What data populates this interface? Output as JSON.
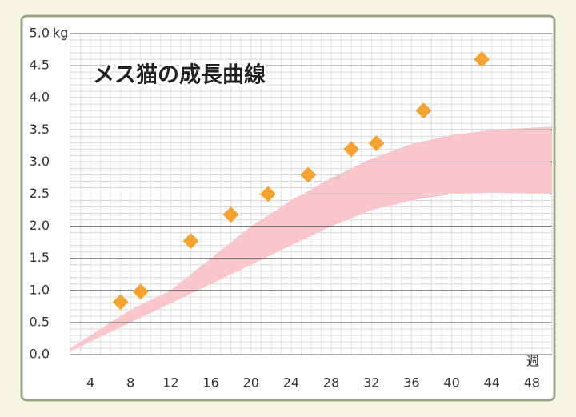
{
  "chart_data": {
    "type": "scatter",
    "title": "メス猫の成長曲線",
    "y_unit": "kg",
    "x_unit": "週",
    "xlim": [
      2,
      50
    ],
    "ylim": [
      0,
      5
    ],
    "xticks": [
      4,
      8,
      12,
      16,
      20,
      24,
      28,
      32,
      36,
      40,
      44,
      48
    ],
    "yticks": [
      {
        "value": 0,
        "label": "0.0"
      },
      {
        "value": 0.5,
        "label": "0.5"
      },
      {
        "value": 1,
        "label": "1.0"
      },
      {
        "value": 1.5,
        "label": "1.5"
      },
      {
        "value": 2,
        "label": "2.0"
      },
      {
        "value": 2.5,
        "label": "2.5"
      },
      {
        "value": 3,
        "label": "3.0"
      },
      {
        "value": 3.5,
        "label": "3.5"
      },
      {
        "value": 4,
        "label": "4.0"
      },
      {
        "value": 4.5,
        "label": "4.5"
      },
      {
        "value": 5,
        "label": "5.0"
      }
    ],
    "grid": true,
    "band": {
      "color": "#f9c6cc",
      "x": [
        2,
        8,
        12,
        16,
        20,
        24,
        28,
        32,
        36,
        40,
        44,
        50
      ],
      "lower": [
        0.05,
        0.5,
        0.8,
        1.1,
        1.4,
        1.7,
        2.0,
        2.25,
        2.4,
        2.5,
        2.52,
        2.5
      ],
      "upper": [
        0.1,
        0.7,
        1.0,
        1.5,
        2.0,
        2.4,
        2.75,
        3.05,
        3.28,
        3.42,
        3.5,
        3.55
      ]
    },
    "series": [
      {
        "color": "#f6a431",
        "x": [
          7,
          9,
          14,
          18,
          21.7,
          25.7,
          30,
          32.5,
          37.2,
          43
        ],
        "values": [
          0.82,
          0.98,
          1.77,
          2.18,
          2.5,
          2.8,
          3.2,
          3.29,
          3.8,
          4.6
        ]
      }
    ]
  }
}
